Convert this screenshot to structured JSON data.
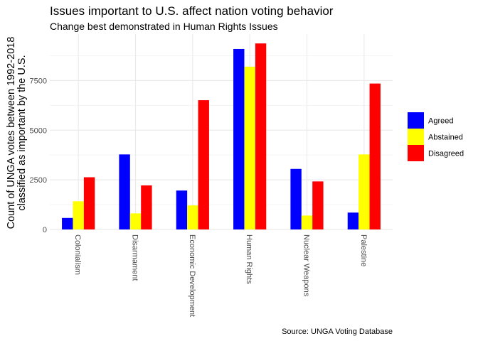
{
  "chart_data": {
    "type": "bar",
    "title": "Issues important to U.S. affect nation voting behavior",
    "subtitle": "Change best demonstrated in Human Rights Issues",
    "ylabel_lines": [
      "Count of UNGA votes between 1992-2018",
      "classified as important by the U.S."
    ],
    "xlabel": "",
    "caption": "Source: UNGA Voting Database",
    "categories": [
      "Colonialism",
      "Disarmament",
      "Economic Development",
      "Human Rights",
      "Nuclear Weapons",
      "Palestine"
    ],
    "series": [
      {
        "name": "Agreed",
        "color": "#0000ff",
        "values": [
          580,
          3780,
          1960,
          9090,
          3050,
          850
        ]
      },
      {
        "name": "Abstained",
        "color": "#ffff00",
        "values": [
          1420,
          810,
          1210,
          8200,
          700,
          3780
        ]
      },
      {
        "name": "Disagreed",
        "color": "#ff0000",
        "values": [
          2630,
          2220,
          6510,
          9370,
          2420,
          7350
        ]
      }
    ],
    "yticks": [
      0,
      2500,
      5000,
      7500
    ],
    "ytick_labels": [
      "0",
      "2500",
      "5000",
      "7500"
    ],
    "ylim": [
      0,
      9840
    ],
    "grid": true,
    "legend_position": "right"
  }
}
